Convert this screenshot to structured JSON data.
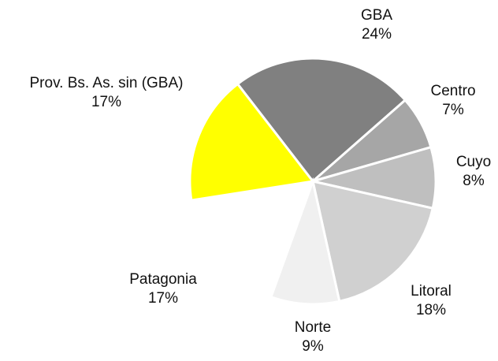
{
  "chart_data": {
    "type": "pie",
    "categories": [
      "GBA",
      "Centro",
      "Cuyo",
      "Litoral",
      "Norte",
      "Patagonia",
      "Prov. Bs. As. sin (GBA)"
    ],
    "values": [
      24,
      7,
      8,
      18,
      9,
      17,
      17
    ],
    "value_labels": [
      "24%",
      "7%",
      "8%",
      "18%",
      "9%",
      "17%",
      "17%"
    ],
    "colors": [
      "#808080",
      "#a6a6a6",
      "#bfbfbf",
      "#d0d0d0",
      "#f0f0f0",
      "#ffffff",
      "#ffff00"
    ]
  }
}
